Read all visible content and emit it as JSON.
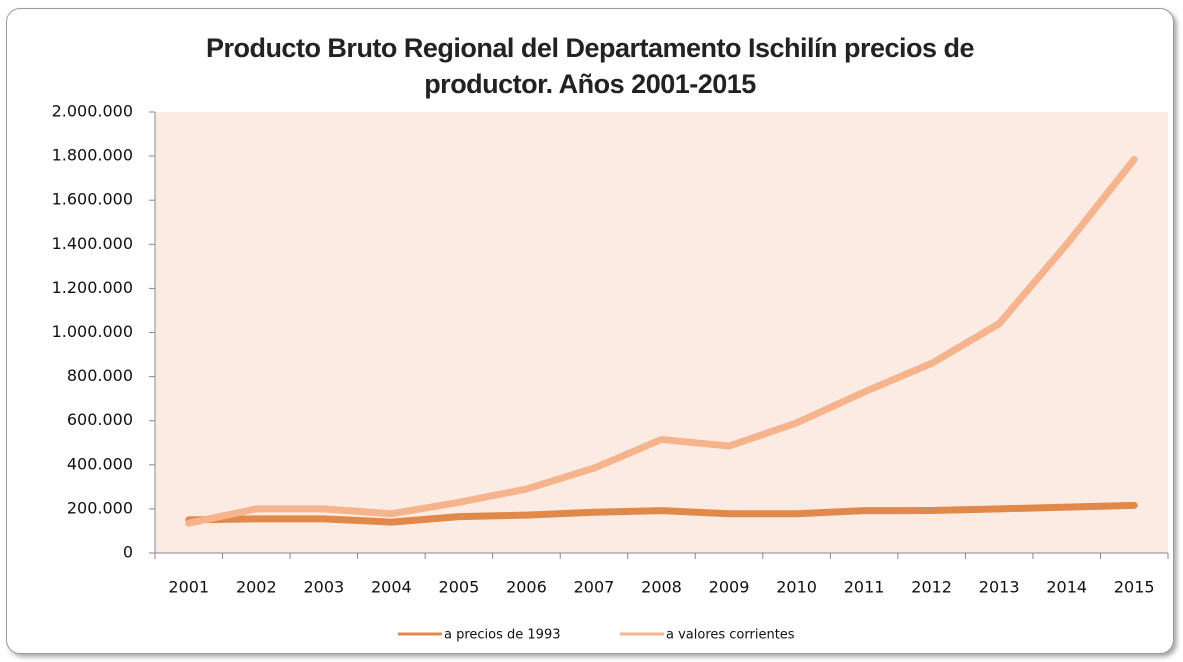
{
  "chart_data": {
    "type": "line",
    "title": "Producto Bruto Regional del Departamento Ischilín precios de productor. Años 2001-2015",
    "categories": [
      "2001",
      "2002",
      "2003",
      "2004",
      "2005",
      "2006",
      "2007",
      "2008",
      "2009",
      "2010",
      "2011",
      "2012",
      "2013",
      "2014",
      "2015"
    ],
    "series": [
      {
        "name": "a precios de 1993",
        "color": "#e0894a",
        "values": [
          150000,
          155000,
          155000,
          140000,
          165000,
          172000,
          185000,
          192000,
          178000,
          178000,
          192000,
          193000,
          200000,
          208000,
          216000
        ]
      },
      {
        "name": "a valores corrientes",
        "color": "#f6b48d",
        "values": [
          135000,
          200000,
          200000,
          178000,
          230000,
          290000,
          385000,
          515000,
          485000,
          590000,
          730000,
          860000,
          1040000,
          1400000,
          1785000
        ]
      }
    ],
    "ylim": [
      0,
      2000000
    ],
    "yticks": [
      0,
      {
        "value": 200000,
        "label": "200.000"
      },
      {
        "value": 400000,
        "label": "400.000"
      },
      {
        "value": 600000,
        "label": "600.000"
      },
      {
        "value": 800000,
        "label": "800.000"
      },
      {
        "value": 1000000,
        "label": "1.000.000"
      },
      {
        "value": 1200000,
        "label": "1.200.000"
      },
      {
        "value": 1400000,
        "label": "1.400.000"
      },
      {
        "value": 1600000,
        "label": "1.600.000"
      },
      {
        "value": 1800000,
        "label": "1.800.000"
      },
      {
        "value": 2000000,
        "label": "2.000.000"
      }
    ],
    "legend": "bottom"
  }
}
